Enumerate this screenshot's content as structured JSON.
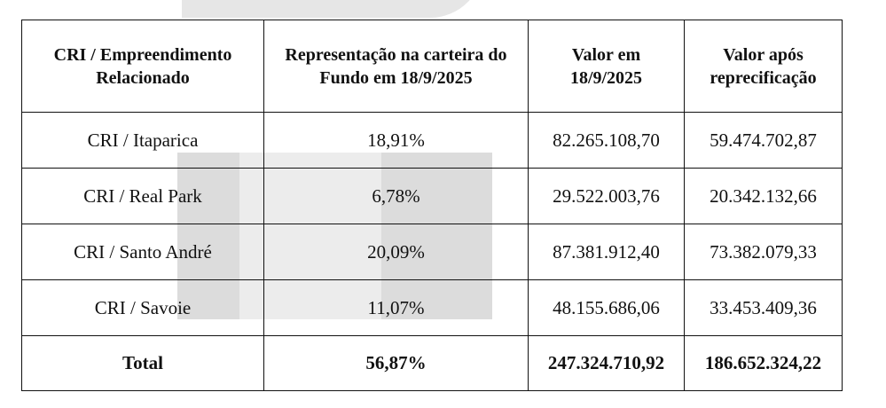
{
  "table": {
    "headers": [
      "CRI / Empreendimento Relacionado",
      "Representação na carteira do Fundo em 18/9/2025",
      "Valor em 18/9/2025",
      "Valor após reprecificação"
    ],
    "rows": [
      {
        "name": "CRI / Itaparica",
        "share": "18,91%",
        "value_before": "82.265.108,70",
        "value_after": "59.474.702,87"
      },
      {
        "name": "CRI / Real Park",
        "share": "6,78%",
        "value_before": "29.522.003,76",
        "value_after": "20.342.132,66"
      },
      {
        "name": "CRI / Santo André",
        "share": "20,09%",
        "value_before": "87.381.912,40",
        "value_after": "73.382.079,33"
      },
      {
        "name": "CRI / Savoie",
        "share": "11,07%",
        "value_before": "48.155.686,06",
        "value_after": "33.453.409,36"
      }
    ],
    "total": {
      "label": "Total",
      "share": "56,87%",
      "value_before": "247.324.710,92",
      "value_after": "186.652.324,22"
    }
  }
}
